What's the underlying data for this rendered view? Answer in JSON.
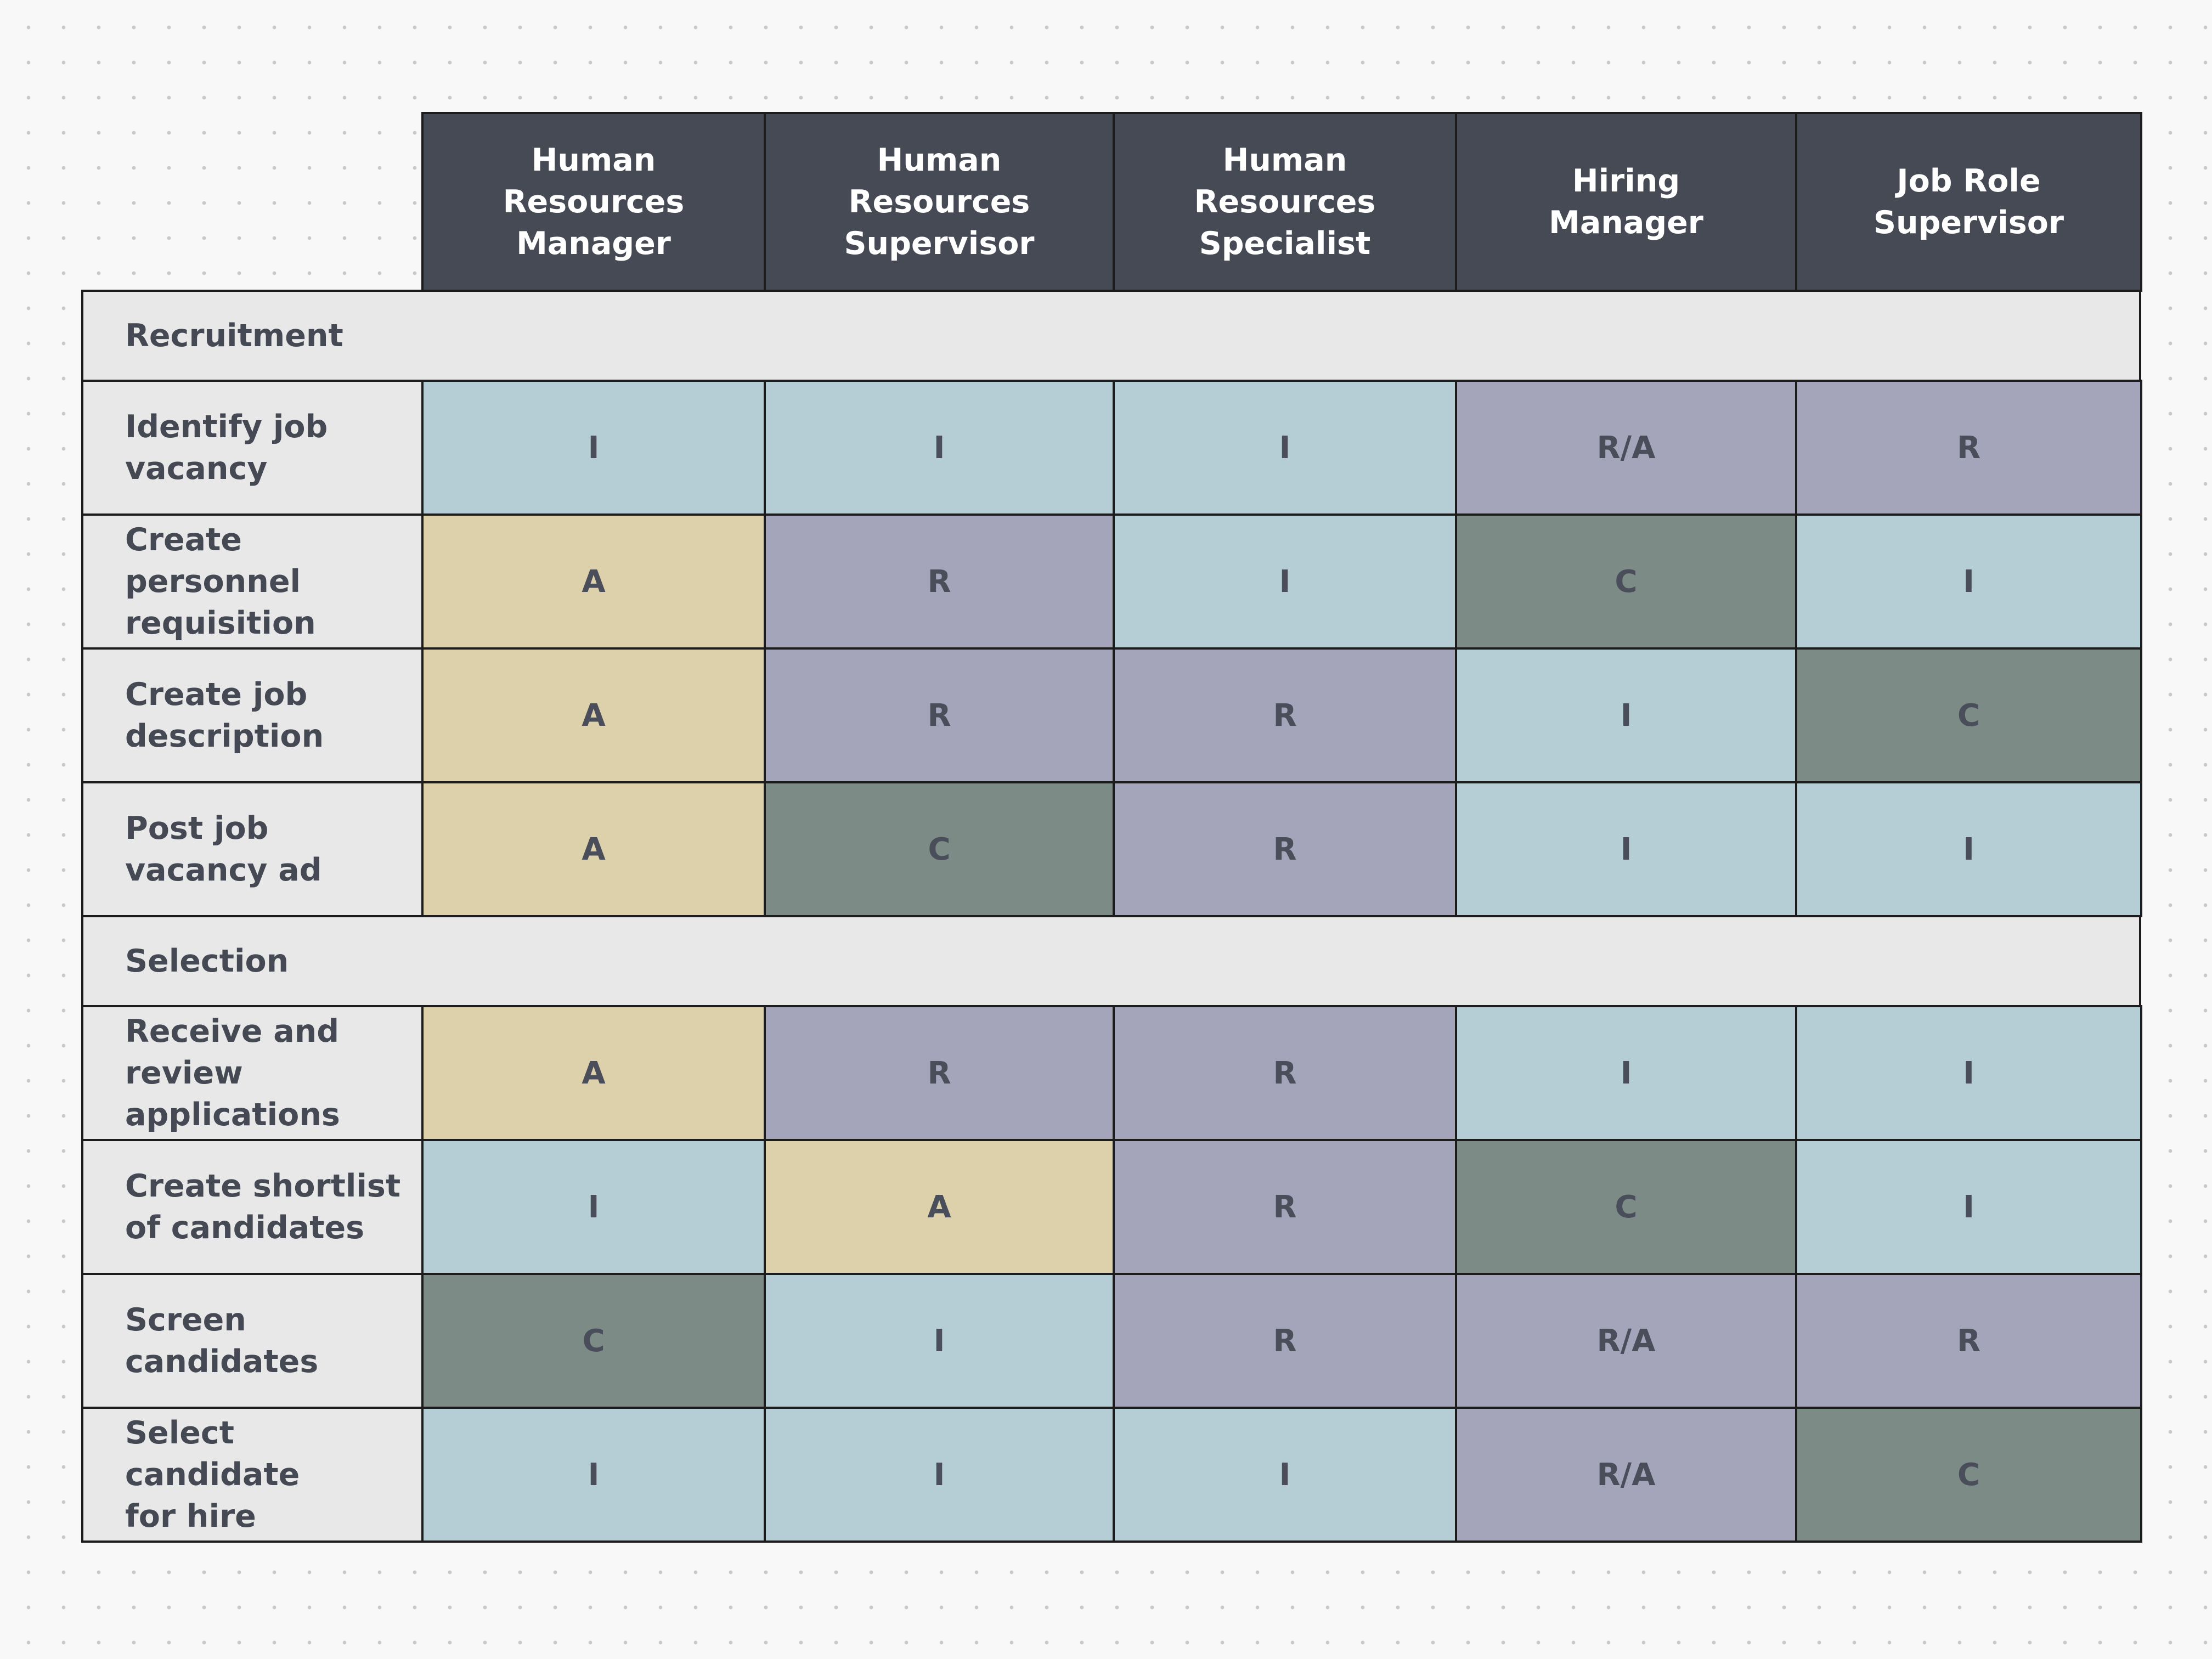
{
  "colors": {
    "header_bg": "#464a55",
    "header_text": "#ffffff",
    "label_bg": "#e8e8e8",
    "cell_text": "#4a4e5a",
    "border": "#1c1c1c",
    "I": "#b5ced5",
    "R": "#a4a5bb",
    "R/A": "#a4a5bb",
    "A": "#ddd1ab",
    "C": "#7d8b87"
  },
  "matrix": {
    "columns": [
      "Human Resources Manager",
      "Human Resources Supervisor",
      "Human Resources Specialist",
      "Hiring Manager",
      "Job Role Supervisor"
    ],
    "sections": [
      {
        "title": "Recruitment",
        "rows": [
          {
            "label": "Identify job vacancy",
            "values": [
              "I",
              "I",
              "I",
              "R/A",
              "R"
            ]
          },
          {
            "label": "Create personnel requisition",
            "values": [
              "A",
              "R",
              "I",
              "C",
              "I"
            ]
          },
          {
            "label": "Create job description",
            "values": [
              "A",
              "R",
              "R",
              "I",
              "C"
            ]
          },
          {
            "label": "Post job vacancy ad",
            "values": [
              "A",
              "C",
              "R",
              "I",
              "I"
            ]
          }
        ]
      },
      {
        "title": "Selection",
        "rows": [
          {
            "label": "Receive and review applications",
            "values": [
              "A",
              "R",
              "R",
              "I",
              "I"
            ]
          },
          {
            "label": "Create shortlist of candidates",
            "values": [
              "I",
              "A",
              "R",
              "C",
              "I"
            ]
          },
          {
            "label": "Screen candidates",
            "values": [
              "C",
              "I",
              "R",
              "R/A",
              "R"
            ]
          },
          {
            "label": "Select candidate for hire",
            "values": [
              "I",
              "I",
              "I",
              "R/A",
              "C"
            ]
          }
        ]
      }
    ]
  }
}
